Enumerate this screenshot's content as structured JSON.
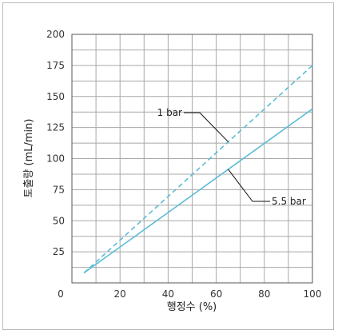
{
  "chart_data": {
    "type": "line",
    "xlabel": "행정수 (%)",
    "ylabel": "토출량 (mL/min)",
    "xlim": [
      0,
      100
    ],
    "ylim": [
      0,
      200
    ],
    "xticks": [
      0,
      20,
      40,
      60,
      80,
      100
    ],
    "yticks": [
      25,
      50,
      75,
      100,
      125,
      150,
      175,
      200
    ],
    "x_origin_label": "0",
    "grid": true,
    "series": [
      {
        "name": "1 bar",
        "style": "dashed",
        "color": "#5bbcd6",
        "x": [
          5,
          100
        ],
        "y": [
          8,
          175
        ]
      },
      {
        "name": "5.5 bar",
        "style": "solid",
        "color": "#5bbcd6",
        "x": [
          5,
          100
        ],
        "y": [
          8,
          140
        ]
      }
    ],
    "annotations": [
      {
        "text": "1 bar",
        "series": "1 bar",
        "at_x": 65
      },
      {
        "text": "5.5 bar",
        "series": "5.5 bar",
        "at_x": 65
      }
    ]
  }
}
